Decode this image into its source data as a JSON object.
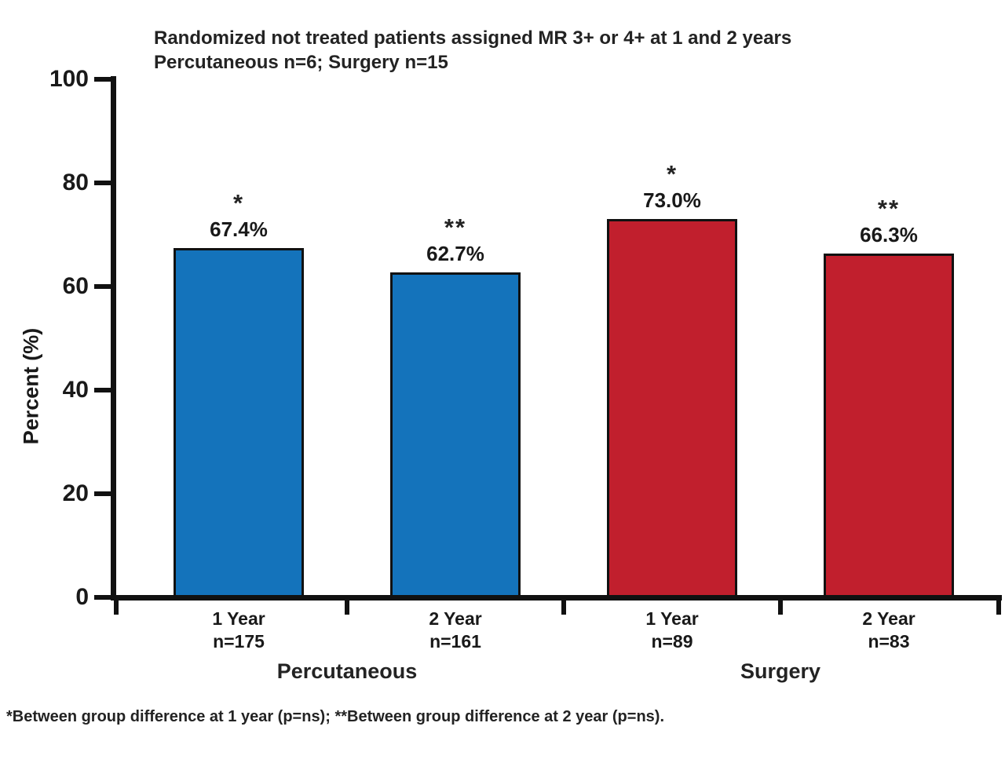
{
  "title": {
    "line1": "Randomized not treated patients assigned MR 3+ or 4+ at 1 and 2 years",
    "line2": "Percutaneous n=6; Surgery n=15"
  },
  "footnote": "*Between group difference at 1 year (p=ns); **Between group difference at 2 year (p=ns).",
  "colors": {
    "percutaneous_bar": "#1473BB",
    "surgery_bar": "#C11F2D",
    "axis": "#111111",
    "text": "#191919"
  },
  "chart_data": {
    "type": "bar",
    "title": "Randomized not treated patients assigned MR 3+ or 4+ at 1 and 2 years; Percutaneous n=6; Surgery n=15",
    "xlabel": "",
    "ylabel": "Percent (%)",
    "ylim": [
      0,
      100
    ],
    "yticks": [
      "0",
      "20",
      "40",
      "60",
      "80",
      "100"
    ],
    "grid": false,
    "legend": "none",
    "categories": [
      "Percutaneous 1 Year (n=175)",
      "Percutaneous 2 Year (n=161)",
      "Surgery 1 Year (n=89)",
      "Surgery 2 Year (n=83)"
    ],
    "values": [
      67.4,
      62.7,
      73.0,
      66.3
    ],
    "annotations": [
      "*",
      "**",
      "*",
      "**"
    ],
    "groups": [
      {
        "name": "Percutaneous",
        "color": "#1473BB",
        "bars": [
          {
            "label": "1 Year",
            "n": "n=175",
            "value": 67.4,
            "value_label": "67.4%",
            "sig": "*"
          },
          {
            "label": "2 Year",
            "n": "n=161",
            "value": 62.7,
            "value_label": "62.7%",
            "sig": "**"
          }
        ]
      },
      {
        "name": "Surgery",
        "color": "#C11F2D",
        "bars": [
          {
            "label": "1 Year",
            "n": "n=89",
            "value": 73.0,
            "value_label": "73.0%",
            "sig": "*"
          },
          {
            "label": "2 Year",
            "n": "n=83",
            "value": 66.3,
            "value_label": "66.3%",
            "sig": "**"
          }
        ]
      }
    ]
  }
}
